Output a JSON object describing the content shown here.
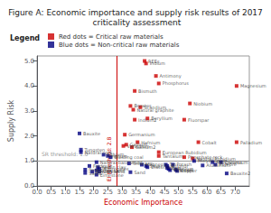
{
  "chart_data": {
    "type": "scatter",
    "title": "Figure A: Economic importance and supply risk results of 2017 criticality assessment",
    "xlabel": "Economic Importance",
    "ylabel": "Supply Risk",
    "xlim": [
      0.0,
      7.5
    ],
    "ylim": [
      0.0,
      5.2
    ],
    "xticks": [
      {
        "value": 0,
        "label": "0.0"
      },
      0.5,
      {
        "value": 1,
        "label": "1.0"
      },
      1.5,
      {
        "value": 2,
        "label": "2.0"
      },
      2.5,
      {
        "value": 3,
        "label": "3.0"
      },
      3.5,
      {
        "value": 4,
        "label": "4.0"
      },
      4.5,
      {
        "value": 5,
        "label": "5.0"
      },
      5.5,
      {
        "value": 6,
        "label": "6.0"
      },
      6.5,
      {
        "value": 7,
        "label": "7.0"
      }
    ],
    "yticks": [
      {
        "value": 0,
        "label": "0.0"
      },
      {
        "value": 1,
        "label": "1.0"
      },
      {
        "value": 2,
        "label": "2.0"
      },
      {
        "value": 3,
        "label": "3.0"
      },
      {
        "value": 4,
        "label": "4.0"
      },
      {
        "value": 5,
        "label": "5.0"
      }
    ],
    "grid": false,
    "legend": "top",
    "legend_title": "Legend",
    "marker": "square",
    "series": [
      {
        "name": "Red dots = Critical raw materials",
        "color": "#cc0000",
        "x": [
          3.8,
          3.85,
          4.2,
          4.3,
          7.05,
          3.45,
          5.4,
          3.3,
          3.65,
          3.4,
          3.45,
          3.9,
          5.2,
          3.1,
          3.15,
          3.55,
          3.05,
          3.35,
          4.3,
          4.3,
          5.2,
          5.5,
          5.7,
          7.05
        ],
        "y": [
          5.0,
          4.9,
          4.4,
          4.1,
          4.0,
          3.8,
          3.3,
          3.2,
          3.15,
          3.05,
          2.65,
          2.7,
          2.65,
          2.05,
          1.65,
          1.75,
          1.6,
          1.55,
          1.35,
          1.2,
          1.15,
          1.1,
          1.75,
          1.75
        ],
        "labels": [
          "REEs",
          "Indium",
          "Antimony",
          "Phosphorus",
          "Magnesium",
          "Bismuth",
          "Niobium",
          "Borates",
          "Scandium",
          "Natural graphite",
          "Indium2",
          "Beryllium",
          "Fluorspar",
          "Germanium",
          "Gallium",
          "Hafnium",
          "Vanadium",
          "Gallium2",
          "European Rubidium",
          "Tantalum",
          "Phosphate rock",
          "Natural Rubidium",
          "Cobalt",
          "Palladium"
        ]
      },
      {
        "name": "Blue dots = Non-critical raw materials",
        "color": "#000080",
        "x": [
          1.5,
          1.55,
          1.55,
          2.35,
          2.5,
          2.6,
          5.55,
          6.2,
          6.5,
          6.3,
          5.85,
          6.7,
          2.1,
          3.25,
          1.85,
          2.15,
          2.2,
          3.7,
          3.85,
          3.9,
          4.55,
          4.6,
          4.8,
          4.6,
          4.65,
          4.7,
          4.9,
          4.95,
          3.3,
          1.7,
          2.1,
          1.95,
          2.2,
          1.7,
          2.1
        ],
        "y": [
          2.1,
          1.45,
          1.35,
          1.25,
          1.2,
          1.15,
          1.0,
          0.95,
          0.95,
          0.85,
          0.82,
          0.5,
          0.95,
          0.9,
          0.8,
          0.75,
          0.68,
          0.85,
          0.8,
          0.75,
          0.85,
          0.8,
          0.85,
          0.72,
          0.68,
          0.63,
          0.65,
          0.6,
          0.55,
          0.65,
          0.62,
          0.57,
          0.57,
          0.52,
          0.45
        ],
        "labels": [
          "Bauxite",
          "Tungsten",
          "Natural cork",
          "Lithium",
          "Helium",
          "Building coal",
          "Molybdenum",
          "Manganese",
          "Chromium",
          "Iron ore",
          "Aluminium",
          "Bauxite2",
          "Natural base wood",
          "Tellurium",
          "Feldspar",
          "Kaolin clay",
          "Aggregates",
          "Magnesia",
          "Silver",
          "Diatomite",
          "Tin",
          "Sulphur",
          "Potash",
          "Zinc",
          "Selenium",
          "Titanium",
          "Nickel",
          "Copper",
          "Sand",
          "Perlite",
          "Silica sand",
          "Bentonite",
          "Clay sand",
          "Sand2",
          "Limestone"
        ]
      }
    ],
    "annotations": [
      {
        "text": "EI threshold: 2.8",
        "x": 2.8,
        "color": "#cc0000"
      },
      {
        "text": "SR threshold: 1.0",
        "y": 1.0,
        "color": "#999999"
      }
    ]
  }
}
